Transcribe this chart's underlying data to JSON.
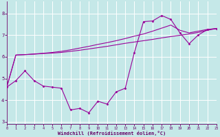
{
  "xlabel": "Windchill (Refroidissement éolien,°C)",
  "bg_color": "#c5e8e8",
  "grid_color": "#aad4d4",
  "line_color": "#990099",
  "spine_color": "#660066",
  "xlim": [
    0,
    23
  ],
  "ylim": [
    2.9,
    8.55
  ],
  "yticks": [
    3,
    4,
    5,
    6,
    7,
    8
  ],
  "xticks": [
    0,
    1,
    2,
    3,
    4,
    5,
    6,
    7,
    8,
    9,
    10,
    11,
    12,
    13,
    14,
    15,
    16,
    17,
    18,
    19,
    20,
    21,
    22,
    23
  ],
  "line1_x": [
    0,
    1,
    2,
    3,
    4,
    5,
    6,
    7,
    8,
    9,
    10,
    11,
    12,
    13,
    14,
    15,
    16,
    17,
    18,
    19,
    20,
    21,
    22,
    23
  ],
  "line1_y": [
    4.6,
    6.08,
    6.1,
    6.12,
    6.15,
    6.17,
    6.2,
    6.25,
    6.3,
    6.36,
    6.42,
    6.48,
    6.55,
    6.62,
    6.68,
    6.74,
    6.8,
    6.87,
    6.93,
    6.99,
    7.05,
    7.12,
    7.22,
    7.3
  ],
  "line2_x": [
    0,
    1,
    2,
    3,
    4,
    5,
    6,
    7,
    8,
    9,
    10,
    11,
    12,
    13,
    14,
    15,
    16,
    17,
    18,
    19,
    20,
    21,
    22,
    23
  ],
  "line2_y": [
    4.6,
    6.08,
    6.1,
    6.13,
    6.16,
    6.2,
    6.25,
    6.32,
    6.4,
    6.48,
    6.57,
    6.65,
    6.74,
    6.84,
    6.95,
    7.05,
    7.18,
    7.32,
    7.46,
    7.22,
    7.1,
    7.18,
    7.26,
    7.3
  ],
  "line3_x": [
    0,
    1,
    2,
    3,
    4,
    5,
    6,
    7,
    8,
    9,
    10,
    11,
    12,
    13,
    14,
    15,
    16,
    17,
    18,
    19,
    20,
    21,
    22,
    23
  ],
  "line3_y": [
    4.6,
    4.9,
    5.35,
    4.9,
    4.65,
    4.6,
    4.55,
    3.55,
    3.62,
    3.42,
    3.95,
    3.82,
    4.38,
    4.55,
    6.2,
    7.62,
    7.65,
    7.9,
    7.72,
    7.1,
    6.6,
    7.0,
    7.25,
    7.3
  ]
}
